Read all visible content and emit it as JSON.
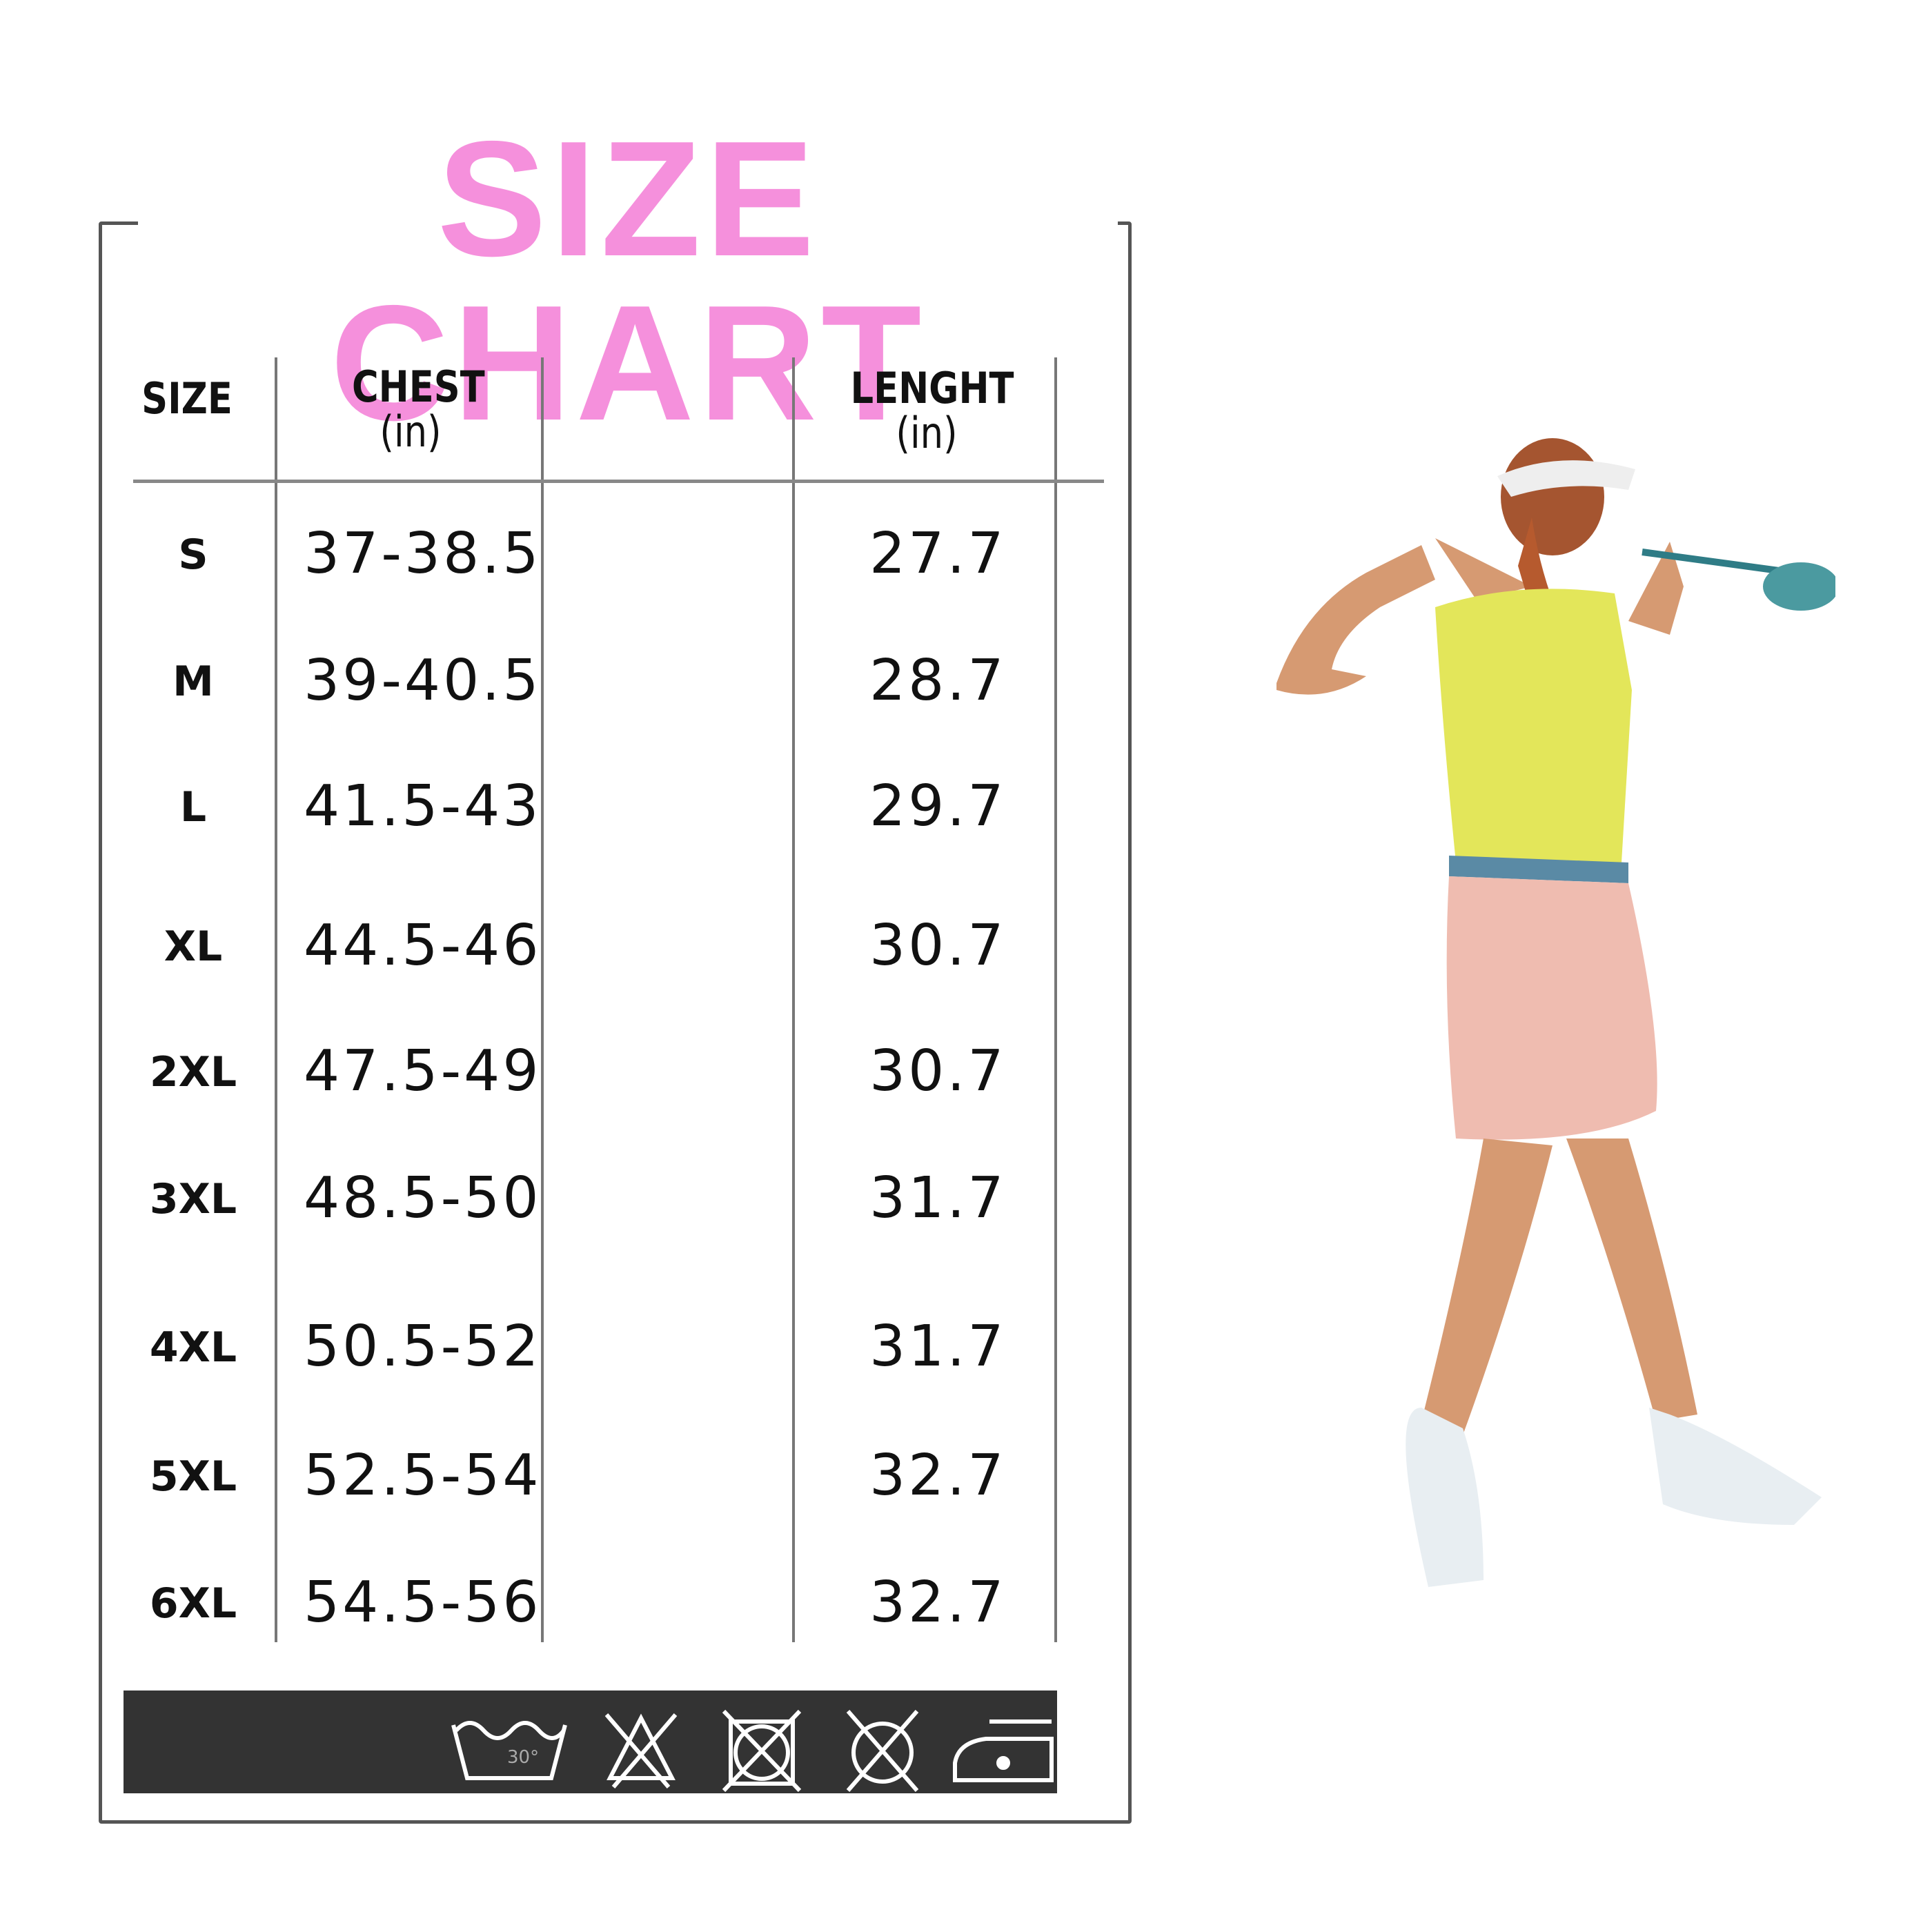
{
  "title": "SIZE CHART",
  "headers": {
    "size": "SIZE",
    "chest": "CHEST",
    "chest_unit": "(in)",
    "length": "LENGHT",
    "length_unit": "(in)"
  },
  "rows": [
    {
      "size": "S",
      "chest": "37-38.5",
      "length": "27.7"
    },
    {
      "size": "M",
      "chest": "39-40.5",
      "length": "28.7"
    },
    {
      "size": "L",
      "chest": "41.5-43",
      "length": "29.7"
    },
    {
      "size": "XL",
      "chest": "44.5-46",
      "length": "30.7"
    },
    {
      "size": "2XL",
      "chest": "47.5-49",
      "length": "30.7"
    },
    {
      "size": "3XL",
      "chest": "48.5-50",
      "length": "31.7"
    },
    {
      "size": "4XL",
      "chest": "50.5-52",
      "length": "31.7"
    },
    {
      "size": "5XL",
      "chest": "52.5-54",
      "length": "32.7"
    },
    {
      "size": "6XL",
      "chest": "54.5-56",
      "length": "32.7"
    }
  ],
  "care_icons": [
    {
      "icon": "wash-30-icon",
      "label": "30°"
    },
    {
      "icon": "do-not-bleach-icon"
    },
    {
      "icon": "do-not-tumble-dry-icon"
    },
    {
      "icon": "do-not-dry-clean-icon"
    },
    {
      "icon": "iron-low-icon"
    }
  ],
  "colors": {
    "title": "#f590dc",
    "care_bar": "#333333"
  }
}
